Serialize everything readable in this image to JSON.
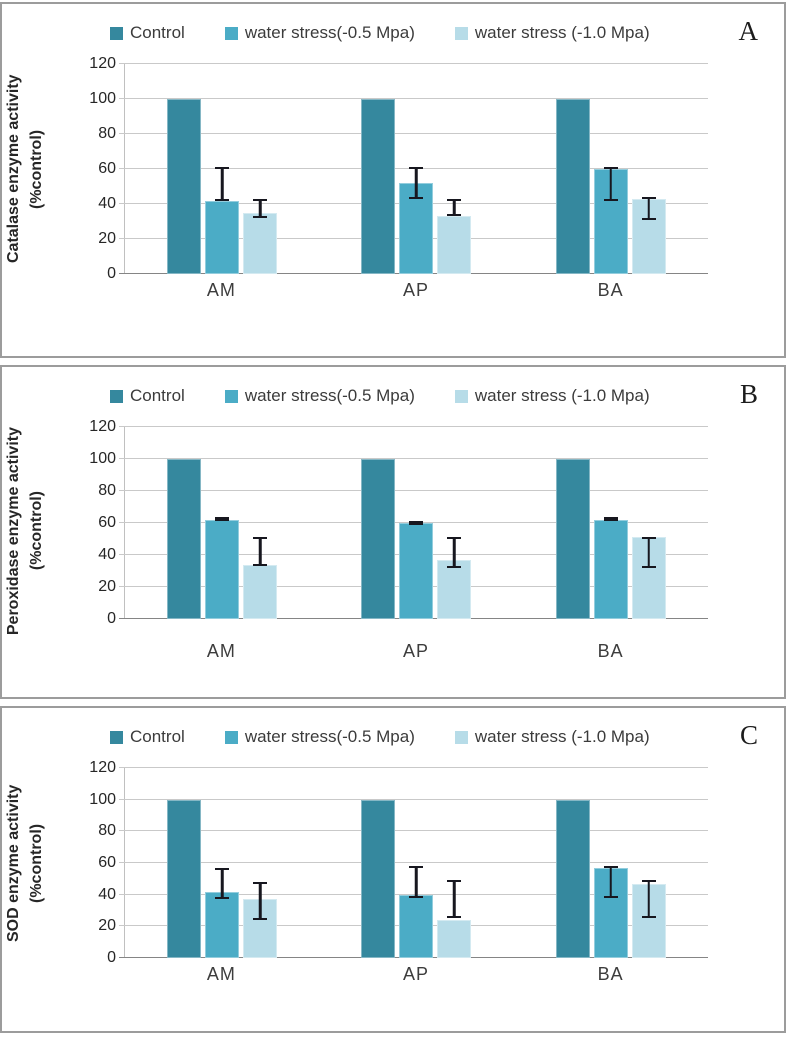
{
  "figure": {
    "description": "Three stacked bar-chart panels (A, B, C) showing enzyme activity as percent of control under water stress for categories AM, AP and BA"
  },
  "appearance": {
    "error_bar_color": "#17171f",
    "gridline_color": "#c9c9c9",
    "axis_line_color": "#858585",
    "panel_border_color": "#9c9c9c",
    "series_colors": [
      "#35889e",
      "#4bacc6",
      "#b7dce8"
    ]
  },
  "chart_data": [
    {
      "type": "bar",
      "panel_letter": "A",
      "title": "",
      "xlabel": "",
      "ylabel": "Catalase enzyme activity (%control)",
      "ylabel_display": "Catalase enzyme activity\n(%control)",
      "categories": [
        "AM",
        "AP",
        "BA"
      ],
      "yticks": [
        0,
        20,
        40,
        60,
        80,
        100,
        120
      ],
      "ylim": [
        0,
        120
      ],
      "grid": true,
      "legend_position": "top",
      "series": [
        {
          "name": "Control",
          "color": "#35889e",
          "values": [
            100,
            100,
            100
          ],
          "error_bars": [
            null,
            null,
            null
          ]
        },
        {
          "name": "water stress(-0.5 Mpa)",
          "color": "#4bacc6",
          "values": [
            42,
            52,
            60
          ],
          "error_bars": [
            {
              "lo": 42,
              "hi": 61
            },
            {
              "lo": 43,
              "hi": 61
            },
            {
              "lo": 42,
              "hi": 61
            }
          ]
        },
        {
          "name": "water stress (-1.0 Mpa)",
          "color": "#b7dce8",
          "values": [
            35,
            33,
            43
          ],
          "error_bars": [
            {
              "lo": 32,
              "hi": 43
            },
            {
              "lo": 33,
              "hi": 43
            },
            {
              "lo": 31,
              "hi": 44
            }
          ]
        }
      ]
    },
    {
      "type": "bar",
      "panel_letter": "B",
      "title": "",
      "xlabel": "",
      "ylabel": "Peroxidase enzyme activity (%control)",
      "ylabel_display": "Peroxidase enzyme activity\n(%control)",
      "categories": [
        "AM",
        "AP",
        "BA"
      ],
      "yticks": [
        0,
        20,
        40,
        60,
        80,
        100,
        120
      ],
      "ylim": [
        0,
        120
      ],
      "grid": true,
      "legend_position": "top",
      "series": [
        {
          "name": "Control",
          "color": "#35889e",
          "values": [
            100,
            100,
            100
          ],
          "error_bars": [
            null,
            null,
            null
          ]
        },
        {
          "name": "water stress(-0.5 Mpa)",
          "color": "#4bacc6",
          "values": [
            62,
            60,
            62
          ],
          "error_bars": [
            {
              "lo": 61,
              "hi": 63
            },
            {
              "lo": 59,
              "hi": 61
            },
            {
              "lo": 61,
              "hi": 63
            }
          ]
        },
        {
          "name": "water stress (-1.0 Mpa)",
          "color": "#b7dce8",
          "values": [
            34,
            37,
            51
          ],
          "error_bars": [
            {
              "lo": 33,
              "hi": 51
            },
            {
              "lo": 32,
              "hi": 51
            },
            {
              "lo": 32,
              "hi": 51
            }
          ]
        }
      ]
    },
    {
      "type": "bar",
      "panel_letter": "C",
      "title": "",
      "xlabel": "",
      "ylabel": "SOD enzyme activity (%control)",
      "ylabel_display": "SOD enzyme activity\n(%control)",
      "categories": [
        "AM",
        "AP",
        "BA"
      ],
      "yticks": [
        0,
        20,
        40,
        60,
        80,
        100,
        120
      ],
      "ylim": [
        0,
        120
      ],
      "grid": true,
      "legend_position": "top",
      "series": [
        {
          "name": "Control",
          "color": "#35889e",
          "values": [
            100,
            100,
            100
          ],
          "error_bars": [
            null,
            null,
            null
          ]
        },
        {
          "name": "water stress(-0.5 Mpa)",
          "color": "#4bacc6",
          "values": [
            42,
            40,
            57
          ],
          "error_bars": [
            {
              "lo": 37,
              "hi": 57
            },
            {
              "lo": 38,
              "hi": 58
            },
            {
              "lo": 38,
              "hi": 58
            }
          ]
        },
        {
          "name": "water stress (-1.0 Mpa)",
          "color": "#b7dce8",
          "values": [
            37,
            24,
            47
          ],
          "error_bars": [
            {
              "lo": 24,
              "hi": 48
            },
            {
              "lo": 25,
              "hi": 49
            },
            {
              "lo": 25,
              "hi": 49
            }
          ]
        }
      ]
    }
  ]
}
